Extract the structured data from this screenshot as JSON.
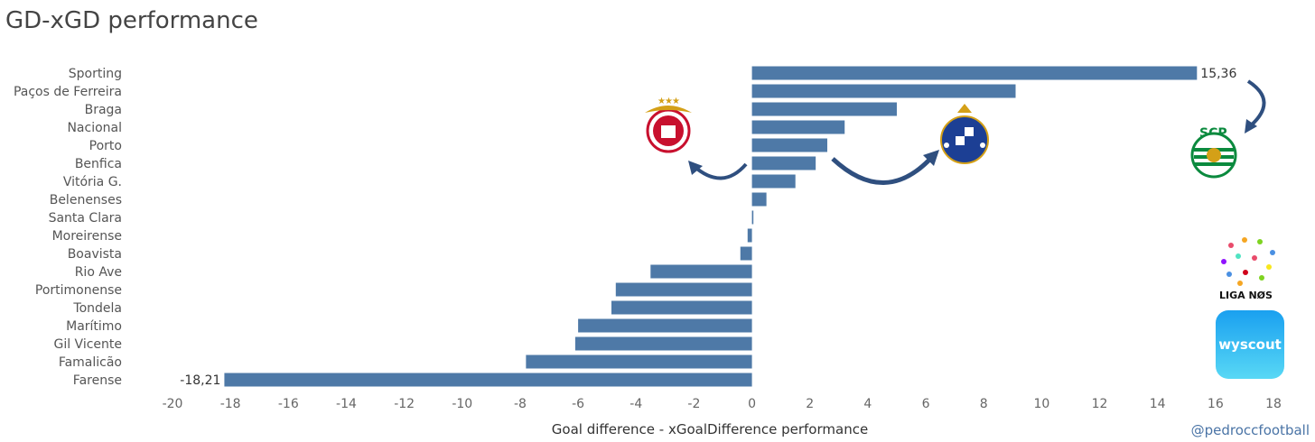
{
  "handle": "@pedroccfootball",
  "logos": {
    "wyscout_text": "wyscout",
    "liga_text": "LIGA NØS"
  },
  "colors": {
    "bar": "#4e79a7",
    "arrow": "#2f4f7f",
    "axis_text": "#666666",
    "label_text": "#555555"
  },
  "chart_data": {
    "type": "bar",
    "orientation": "horizontal",
    "title": "GD-xGD performance",
    "xlabel": "Goal difference - xGoalDifference performance",
    "ylabel": "",
    "xlim": [
      -20,
      18
    ],
    "xticks": [
      "-20",
      "-18",
      "-16",
      "-14",
      "-12",
      "-10",
      "-8",
      "-6",
      "-4",
      "-2",
      "0",
      "2",
      "4",
      "6",
      "8",
      "10",
      "12",
      "14",
      "16",
      "18"
    ],
    "grid": false,
    "categories": [
      "Sporting",
      "Paços de Ferreira",
      "Braga",
      "Nacional",
      "Porto",
      "Benfica",
      "Vitória G.",
      "Belenenses",
      "Santa Clara",
      "Moreirense",
      "Boavista",
      "Rio Ave",
      "Portimonense",
      "Tondela",
      "Marítimo",
      "Gil Vicente",
      "Famalicão",
      "Farense"
    ],
    "values": [
      15.36,
      9.1,
      5.0,
      3.2,
      2.6,
      2.2,
      1.5,
      0.5,
      0.05,
      -0.15,
      -0.4,
      -3.5,
      -4.7,
      -4.85,
      -6.0,
      -6.1,
      -7.8,
      -18.21
    ],
    "data_labels": {
      "Sporting": "15,36",
      "Farense": "-18,21"
    }
  }
}
